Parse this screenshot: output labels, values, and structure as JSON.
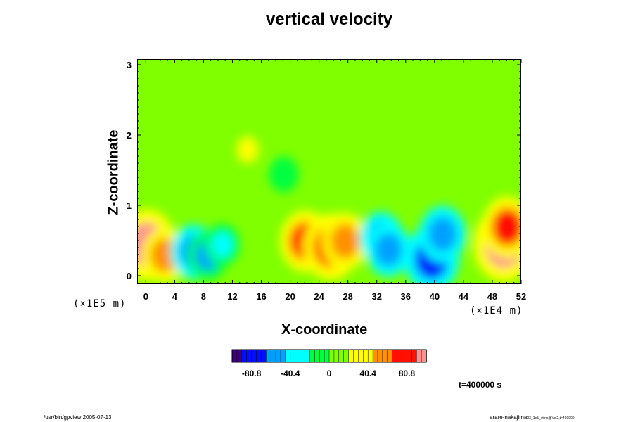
{
  "chart_data": {
    "type": "heatmap",
    "title": "vertical velocity",
    "xlabel": "X-coordinate",
    "ylabel": "Z-coordinate",
    "x_ticks": [
      "0",
      "4",
      "8",
      "12",
      "16",
      "20",
      "24",
      "28",
      "32",
      "36",
      "40",
      "44",
      "48",
      "52"
    ],
    "y_ticks": [
      "0",
      "1",
      "2",
      "3"
    ],
    "x_scale_label": "(×1E4 m)",
    "z_scale_label": "(×1E5 m)",
    "x_range": [
      -1.2,
      52
    ],
    "z_range": [
      -0.12,
      3.08
    ],
    "colorbar": {
      "ticks": [
        "-80.8",
        "-40.4",
        "0",
        "40.4",
        "80.8"
      ],
      "tick_values": [
        -80.8,
        -40.4,
        0,
        40.4,
        80.8
      ],
      "range": [
        -101,
        101
      ],
      "colors": [
        "#3c007a",
        "#0010ff",
        "#00a0ff",
        "#00ffff",
        "#00ff40",
        "#80ff00",
        "#ffff00",
        "#ff9000",
        "#ff1000",
        "#ff9090"
      ]
    },
    "features": [
      {
        "x": 0.0,
        "z": 0.45,
        "value": 90
      },
      {
        "x": 2.5,
        "z": 0.3,
        "value": 55
      },
      {
        "x": 6.5,
        "z": 0.35,
        "value": -55
      },
      {
        "x": 8.5,
        "z": 0.3,
        "value": -45
      },
      {
        "x": 10.5,
        "z": 0.45,
        "value": -30
      },
      {
        "x": 22.0,
        "z": 0.5,
        "value": 70
      },
      {
        "x": 25.5,
        "z": 0.42,
        "value": 80
      },
      {
        "x": 27.5,
        "z": 0.5,
        "value": 60
      },
      {
        "x": 32.5,
        "z": 0.55,
        "value": -50
      },
      {
        "x": 33.5,
        "z": 0.38,
        "value": -55
      },
      {
        "x": 39.5,
        "z": 0.25,
        "value": -80
      },
      {
        "x": 41.0,
        "z": 0.6,
        "value": -60
      },
      {
        "x": 49.5,
        "z": 0.45,
        "value": 95
      },
      {
        "x": 50.0,
        "z": 0.7,
        "value": 70
      },
      {
        "x": 14.0,
        "z": 1.8,
        "value": 25
      },
      {
        "x": 19.0,
        "z": 1.45,
        "value": -18
      },
      {
        "x": 29.5,
        "z": 1.6,
        "value": 18
      }
    ]
  },
  "time_label": "t=400000 s",
  "footer_left": "/usr/bin/gpview 2005-07-13",
  "footer_right_main": "arare-nakajima",
  "footer_right_small": "03_1e5_vt.nc@Vel2,t=400000"
}
